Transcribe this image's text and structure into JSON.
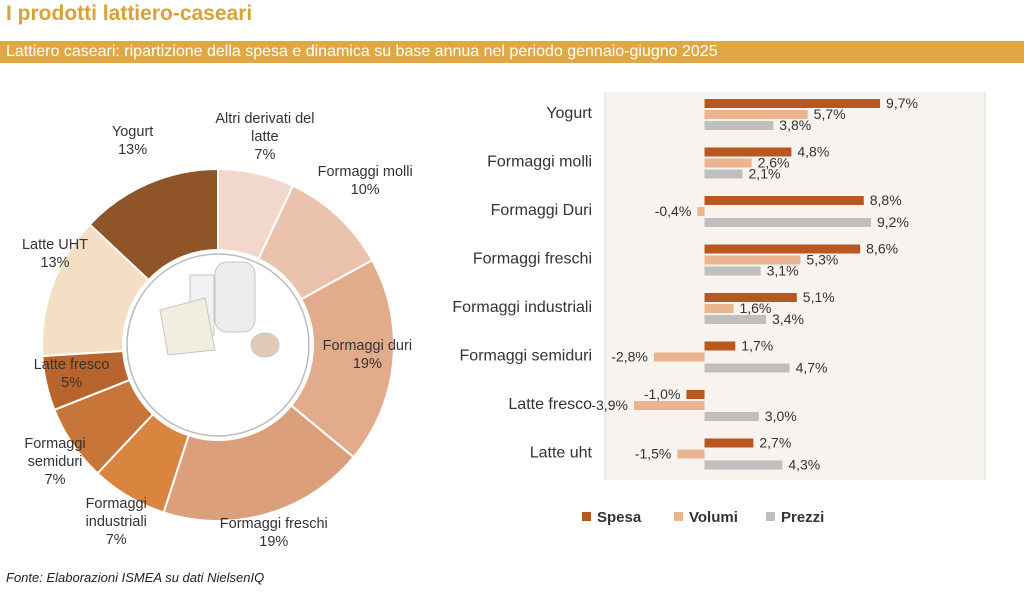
{
  "title": "I prodotti lattiero-caseari",
  "subtitle": "Lattiero caseari: ripartizione della spesa e dinamica su base annua nel periodo gennaio-giugno 2025",
  "source": "Fonte: Elaborazioni ISMEA su dati NielsenIQ",
  "chart_data": [
    {
      "type": "donut",
      "categories": [
        "Altri derivati del latte",
        "Formaggi molli",
        "Formaggi duri",
        "Formaggi freschi",
        "Formaggi industriali",
        "Formaggi semiduri",
        "Latte fresco",
        "Latte UHT",
        "Yogurt"
      ],
      "values": [
        7,
        10,
        19,
        19,
        7,
        7,
        5,
        13,
        13
      ],
      "value_labels": [
        "7%",
        "10%",
        "19%",
        "19%",
        "7%",
        "7%",
        "5%",
        "13%",
        "13%"
      ],
      "colors": [
        "#f2d8cc",
        "#ebc3ad",
        "#e2ab8c",
        "#dc9f7c",
        "#d9843f",
        "#c8753a",
        "#b8652d",
        "#f5dfc4",
        "#8f5428"
      ]
    },
    {
      "type": "bar",
      "orientation": "horizontal",
      "categories": [
        "Yogurt",
        "Formaggi molli",
        "Formaggi Duri",
        "Formaggi freschi",
        "Formaggi industriali",
        "Formaggi semiduri",
        "Latte fresco",
        "Latte uht"
      ],
      "series": [
        {
          "name": "Spesa",
          "color": "#b8581e",
          "values": [
            9.7,
            4.8,
            8.8,
            8.6,
            5.1,
            1.7,
            -1.0,
            2.7
          ],
          "value_labels": [
            "9,7%",
            "4,8%",
            "8,8%",
            "8,6%",
            "5,1%",
            "1,7%",
            "-1,0%",
            "2,7%"
          ]
        },
        {
          "name": "Volumi",
          "color": "#e9b48e",
          "values": [
            5.7,
            2.6,
            -0.4,
            5.3,
            1.6,
            -2.8,
            -3.9,
            -1.5
          ],
          "value_labels": [
            "5,7%",
            "2,6%",
            "-0,4%",
            "5,3%",
            "1,6%",
            "-2,8%",
            "-3,9%",
            "-1,5%"
          ]
        },
        {
          "name": "Prezzi",
          "color": "#bfbfbf",
          "values": [
            3.8,
            2.1,
            9.2,
            3.1,
            3.4,
            4.7,
            3.0,
            4.3
          ],
          "value_labels": [
            "3,8%",
            "2,1%",
            "9,2%",
            "3,1%",
            "3,4%",
            "4,7%",
            "3,0%",
            "4,3%"
          ]
        }
      ],
      "xlim": [
        -5.5,
        15.5
      ],
      "legend": "bottom"
    }
  ]
}
